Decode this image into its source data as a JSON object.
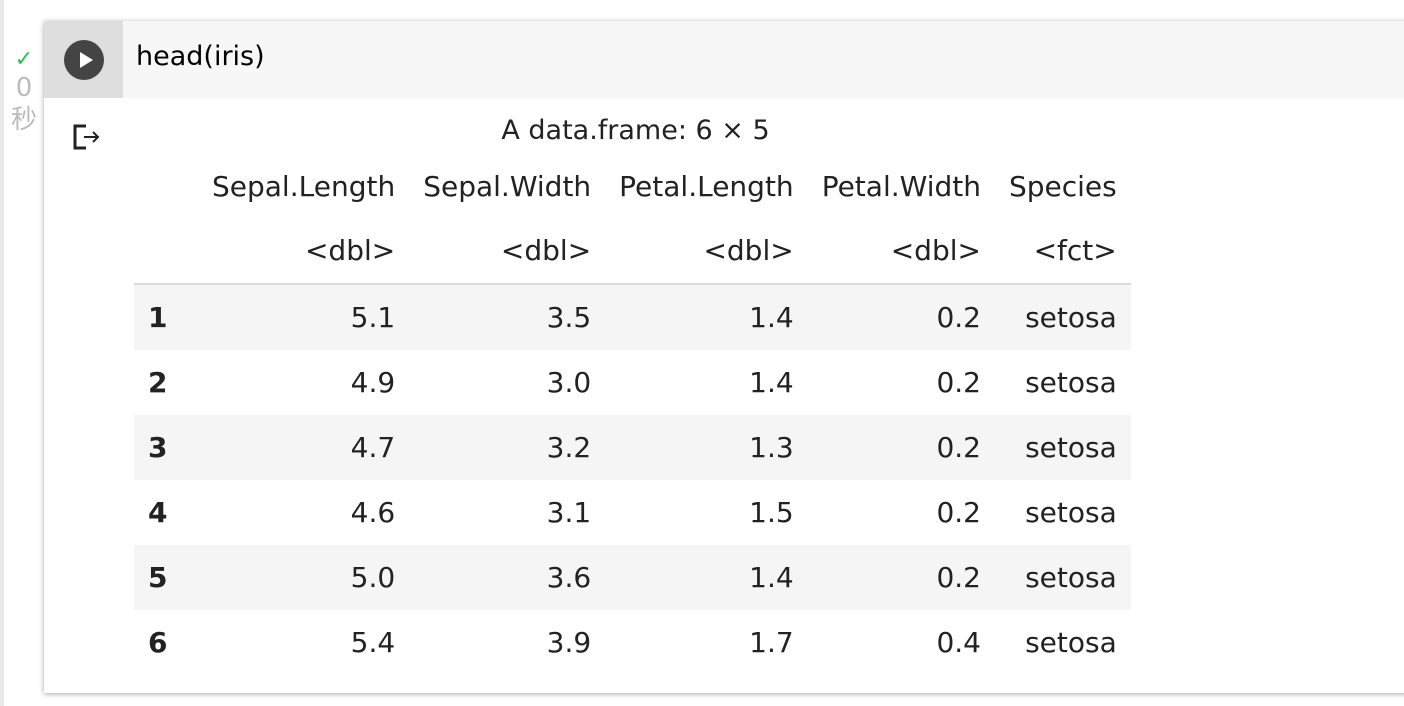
{
  "status": {
    "check": "✓",
    "elapsed": "0",
    "unit": "秒"
  },
  "cell": {
    "code": "head(iris)"
  },
  "output": {
    "caption": "A data.frame: 6 × 5",
    "columns": [
      "Sepal.Length",
      "Sepal.Width",
      "Petal.Length",
      "Petal.Width",
      "Species"
    ],
    "types": [
      "<dbl>",
      "<dbl>",
      "<dbl>",
      "<dbl>",
      "<fct>"
    ],
    "rows": [
      [
        "1",
        "5.1",
        "3.5",
        "1.4",
        "0.2",
        "setosa"
      ],
      [
        "2",
        "4.9",
        "3.0",
        "1.4",
        "0.2",
        "setosa"
      ],
      [
        "3",
        "4.7",
        "3.2",
        "1.3",
        "0.2",
        "setosa"
      ],
      [
        "4",
        "4.6",
        "3.1",
        "1.5",
        "0.2",
        "setosa"
      ],
      [
        "5",
        "5.0",
        "3.6",
        "1.4",
        "0.2",
        "setosa"
      ],
      [
        "6",
        "5.4",
        "3.9",
        "1.7",
        "0.4",
        "setosa"
      ]
    ]
  }
}
